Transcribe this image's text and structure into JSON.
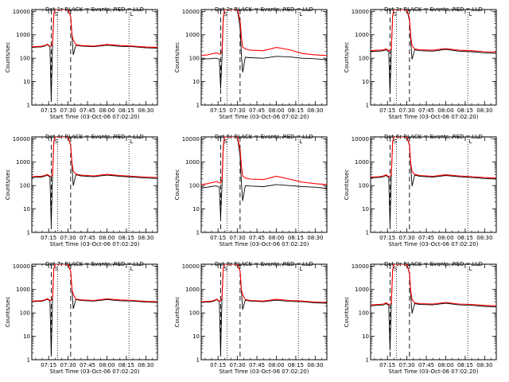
{
  "common": {
    "y_label": "Counts/sec",
    "x_label": "Start Time (03-Oct-06 07:02:20)",
    "x_ticks": [
      "07:15",
      "07:30",
      "07:45",
      "08:00",
      "08:15",
      "08:30"
    ],
    "x_tick_values": [
      15,
      30,
      45,
      60,
      75,
      90
    ],
    "x_range": [
      2,
      99
    ],
    "y_ticks": [
      "1",
      "10",
      "100",
      "1000",
      "10000"
    ],
    "y_range": [
      1,
      12000
    ],
    "markers": {
      "s_label": "S",
      "l_label": "L",
      "s_x": 21,
      "l_x": 79
    },
    "dashed_lines": [
      17,
      32
    ],
    "dotted_lines": [
      22,
      77
    ],
    "colors": {
      "events": "#000000",
      "lld": "#ff0000"
    }
  },
  "chart_data": [
    {
      "type": "line",
      "title": "Det 1r BLACK = Events, RED = LLD",
      "series": [
        {
          "name": "Events",
          "color": "#000000",
          "x": [
            2,
            7,
            9,
            12,
            14,
            16,
            17,
            18,
            19,
            20,
            21,
            22,
            25,
            28,
            30,
            32,
            33,
            34,
            36,
            40,
            50,
            60,
            70,
            80,
            90,
            99
          ],
          "y": [
            290,
            300,
            300,
            330,
            380,
            310,
            1.7,
            400,
            8000,
            12000,
            12000,
            12000,
            12000,
            12000,
            12000,
            6000,
            1000,
            140,
            360,
            330,
            310,
            360,
            320,
            310,
            280,
            270
          ]
        },
        {
          "name": "LLD",
          "color": "#ff0000",
          "x": [
            2,
            7,
            9,
            12,
            14,
            16,
            17,
            18,
            19,
            20,
            21,
            22,
            25,
            28,
            30,
            32,
            33,
            34,
            36,
            40,
            50,
            60,
            70,
            80,
            90,
            99
          ],
          "y": [
            310,
            320,
            320,
            350,
            400,
            330,
            330,
            420,
            8000,
            12000,
            12000,
            12000,
            12000,
            12000,
            12000,
            6000,
            1000,
            600,
            380,
            350,
            330,
            390,
            350,
            330,
            300,
            290
          ]
        }
      ]
    },
    {
      "type": "line",
      "title": "Det 2r BLACK = Events, RED = LLD",
      "series": [
        {
          "name": "Events",
          "color": "#000000",
          "x": [
            2,
            7,
            9,
            12,
            14,
            16,
            17,
            18,
            19,
            20,
            21,
            22,
            25,
            28,
            30,
            32,
            33,
            34,
            36,
            40,
            50,
            60,
            70,
            80,
            90,
            99
          ],
          "y": [
            90,
            95,
            95,
            100,
            100,
            90,
            5,
            100,
            4000,
            12000,
            12000,
            12000,
            12000,
            12000,
            12000,
            2000,
            150,
            25,
            110,
            105,
            100,
            120,
            115,
            100,
            95,
            85
          ]
        },
        {
          "name": "LLD",
          "color": "#ff0000",
          "x": [
            2,
            7,
            9,
            12,
            14,
            16,
            17,
            18,
            19,
            20,
            21,
            22,
            25,
            28,
            30,
            32,
            33,
            34,
            36,
            40,
            50,
            60,
            70,
            80,
            90,
            99
          ],
          "y": [
            130,
            140,
            150,
            160,
            170,
            150,
            150,
            200,
            5000,
            12000,
            12000,
            12000,
            12000,
            12000,
            12000,
            4000,
            800,
            300,
            250,
            220,
            210,
            290,
            230,
            160,
            140,
            130
          ]
        }
      ]
    },
    {
      "type": "line",
      "title": "Det 3r BLACK = Events, RED = LLD",
      "series": [
        {
          "name": "Events",
          "color": "#000000",
          "x": [
            2,
            7,
            9,
            12,
            14,
            16,
            17,
            18,
            19,
            20,
            21,
            22,
            25,
            28,
            30,
            32,
            33,
            34,
            36,
            40,
            50,
            60,
            70,
            80,
            90,
            99
          ],
          "y": [
            190,
            200,
            200,
            210,
            230,
            190,
            3,
            240,
            6000,
            12000,
            12000,
            12000,
            12000,
            12000,
            12000,
            4000,
            500,
            90,
            230,
            210,
            200,
            240,
            200,
            190,
            170,
            160
          ]
        },
        {
          "name": "LLD",
          "color": "#ff0000",
          "x": [
            2,
            7,
            9,
            12,
            14,
            16,
            17,
            18,
            19,
            20,
            21,
            22,
            25,
            28,
            30,
            32,
            33,
            34,
            36,
            40,
            50,
            60,
            70,
            80,
            90,
            99
          ],
          "y": [
            210,
            220,
            220,
            230,
            250,
            210,
            210,
            260,
            6500,
            12000,
            12000,
            12000,
            12000,
            12000,
            12000,
            5000,
            800,
            350,
            250,
            230,
            220,
            260,
            220,
            210,
            190,
            180
          ]
        }
      ]
    },
    {
      "type": "line",
      "title": "Det 4r BLACK = Events, RED = LLD",
      "series": [
        {
          "name": "Events",
          "color": "#000000",
          "x": [
            2,
            7,
            9,
            12,
            14,
            16,
            17,
            18,
            19,
            20,
            21,
            22,
            25,
            28,
            30,
            32,
            33,
            34,
            36,
            40,
            50,
            60,
            70,
            80,
            90,
            99
          ],
          "y": [
            220,
            230,
            230,
            250,
            280,
            230,
            2,
            300,
            7000,
            12000,
            12000,
            12000,
            12000,
            12000,
            12000,
            5000,
            700,
            100,
            290,
            260,
            240,
            280,
            250,
            230,
            210,
            200
          ]
        },
        {
          "name": "LLD",
          "color": "#ff0000",
          "x": [
            2,
            7,
            9,
            12,
            14,
            16,
            17,
            18,
            19,
            20,
            21,
            22,
            25,
            28,
            30,
            32,
            33,
            34,
            36,
            40,
            50,
            60,
            70,
            80,
            90,
            99
          ],
          "y": [
            240,
            250,
            250,
            270,
            300,
            250,
            250,
            320,
            7500,
            12000,
            12000,
            12000,
            12000,
            12000,
            12000,
            5500,
            900,
            420,
            310,
            280,
            260,
            300,
            270,
            250,
            230,
            220
          ]
        }
      ]
    },
    {
      "type": "line",
      "title": "Det 5r BLACK = Events, RED = LLD",
      "series": [
        {
          "name": "Events",
          "color": "#000000",
          "x": [
            2,
            7,
            9,
            12,
            14,
            16,
            17,
            18,
            19,
            20,
            21,
            22,
            25,
            28,
            30,
            32,
            33,
            34,
            36,
            40,
            50,
            60,
            70,
            80,
            90,
            99
          ],
          "y": [
            80,
            85,
            90,
            95,
            95,
            85,
            4,
            95,
            3500,
            12000,
            12000,
            12000,
            12000,
            12000,
            12000,
            1800,
            140,
            22,
            100,
            95,
            90,
            110,
            100,
            90,
            85,
            75
          ]
        },
        {
          "name": "LLD",
          "color": "#ff0000",
          "x": [
            2,
            7,
            9,
            12,
            14,
            16,
            17,
            18,
            19,
            20,
            21,
            22,
            25,
            28,
            30,
            32,
            33,
            34,
            36,
            40,
            50,
            60,
            70,
            80,
            90,
            99
          ],
          "y": [
            110,
            120,
            130,
            140,
            150,
            130,
            130,
            180,
            4500,
            12000,
            12000,
            12000,
            12000,
            12000,
            12000,
            3500,
            700,
            260,
            210,
            190,
            180,
            250,
            190,
            140,
            120,
            110
          ]
        }
      ]
    },
    {
      "type": "line",
      "title": "Det 6r BLACK = Events, RED = LLD",
      "series": [
        {
          "name": "Events",
          "color": "#000000",
          "x": [
            2,
            7,
            9,
            12,
            14,
            16,
            17,
            18,
            19,
            20,
            21,
            22,
            25,
            28,
            30,
            32,
            33,
            34,
            36,
            40,
            50,
            60,
            70,
            80,
            90,
            99
          ],
          "y": [
            210,
            220,
            220,
            240,
            270,
            220,
            2,
            290,
            7000,
            12000,
            12000,
            12000,
            12000,
            12000,
            12000,
            5000,
            650,
            95,
            280,
            250,
            230,
            270,
            240,
            220,
            200,
            190
          ]
        },
        {
          "name": "LLD",
          "color": "#ff0000",
          "x": [
            2,
            7,
            9,
            12,
            14,
            16,
            17,
            18,
            19,
            20,
            21,
            22,
            25,
            28,
            30,
            32,
            33,
            34,
            36,
            40,
            50,
            60,
            70,
            80,
            90,
            99
          ],
          "y": [
            230,
            240,
            240,
            260,
            290,
            240,
            240,
            310,
            7500,
            12000,
            12000,
            12000,
            12000,
            12000,
            12000,
            5500,
            850,
            400,
            300,
            270,
            250,
            290,
            260,
            240,
            220,
            210
          ]
        }
      ]
    },
    {
      "type": "line",
      "title": "Det 7r BLACK = Events, RED = LLD",
      "series": [
        {
          "name": "Events",
          "color": "#000000",
          "x": [
            2,
            7,
            9,
            12,
            14,
            16,
            17,
            18,
            19,
            20,
            21,
            22,
            25,
            28,
            30,
            32,
            33,
            34,
            36,
            40,
            50,
            60,
            70,
            80,
            90,
            99
          ],
          "y": [
            300,
            310,
            310,
            340,
            390,
            320,
            1.7,
            410,
            8000,
            12000,
            12000,
            12000,
            12000,
            12000,
            12000,
            6000,
            1000,
            150,
            370,
            340,
            320,
            370,
            330,
            320,
            290,
            280
          ]
        },
        {
          "name": "LLD",
          "color": "#ff0000",
          "x": [
            2,
            7,
            9,
            12,
            14,
            16,
            17,
            18,
            19,
            20,
            21,
            22,
            25,
            28,
            30,
            32,
            33,
            34,
            36,
            40,
            50,
            60,
            70,
            80,
            90,
            99
          ],
          "y": [
            320,
            330,
            330,
            360,
            410,
            340,
            340,
            430,
            8000,
            12000,
            12000,
            12000,
            12000,
            12000,
            12000,
            6000,
            1000,
            620,
            390,
            360,
            340,
            400,
            360,
            340,
            310,
            300
          ]
        }
      ]
    },
    {
      "type": "line",
      "title": "Det 8r BLACK = Events, RED = LLD",
      "series": [
        {
          "name": "Events",
          "color": "#000000",
          "x": [
            2,
            7,
            9,
            12,
            14,
            16,
            17,
            18,
            19,
            20,
            21,
            22,
            25,
            28,
            30,
            32,
            33,
            34,
            36,
            40,
            50,
            60,
            70,
            80,
            90,
            99
          ],
          "y": [
            280,
            290,
            290,
            320,
            370,
            300,
            1.8,
            390,
            8000,
            12000,
            12000,
            12000,
            12000,
            12000,
            12000,
            6000,
            950,
            140,
            350,
            320,
            300,
            350,
            310,
            300,
            270,
            260
          ]
        },
        {
          "name": "LLD",
          "color": "#ff0000",
          "x": [
            2,
            7,
            9,
            12,
            14,
            16,
            17,
            18,
            19,
            20,
            21,
            22,
            25,
            28,
            30,
            32,
            33,
            34,
            36,
            40,
            50,
            60,
            70,
            80,
            90,
            99
          ],
          "y": [
            300,
            310,
            310,
            340,
            390,
            320,
            320,
            410,
            8000,
            12000,
            12000,
            12000,
            12000,
            12000,
            12000,
            6000,
            1000,
            600,
            370,
            340,
            320,
            380,
            340,
            320,
            290,
            280
          ]
        }
      ]
    },
    {
      "type": "line",
      "title": "Det 9r BLACK = Events, RED = LLD",
      "series": [
        {
          "name": "Events",
          "color": "#000000",
          "x": [
            2,
            7,
            9,
            12,
            14,
            16,
            17,
            18,
            19,
            20,
            21,
            22,
            25,
            28,
            30,
            32,
            33,
            34,
            36,
            40,
            50,
            60,
            70,
            80,
            90,
            99
          ],
          "y": [
            200,
            210,
            210,
            220,
            250,
            210,
            2.5,
            260,
            6500,
            12000,
            12000,
            12000,
            12000,
            12000,
            12000,
            4500,
            550,
            95,
            250,
            230,
            220,
            260,
            220,
            210,
            190,
            180
          ]
        },
        {
          "name": "LLD",
          "color": "#ff0000",
          "x": [
            2,
            7,
            9,
            12,
            14,
            16,
            17,
            18,
            19,
            20,
            21,
            22,
            25,
            28,
            30,
            32,
            33,
            34,
            36,
            40,
            50,
            60,
            70,
            80,
            90,
            99
          ],
          "y": [
            220,
            230,
            230,
            240,
            270,
            230,
            230,
            280,
            7000,
            12000,
            12000,
            12000,
            12000,
            12000,
            12000,
            5000,
            850,
            370,
            270,
            250,
            240,
            280,
            240,
            230,
            210,
            200
          ]
        }
      ]
    }
  ]
}
